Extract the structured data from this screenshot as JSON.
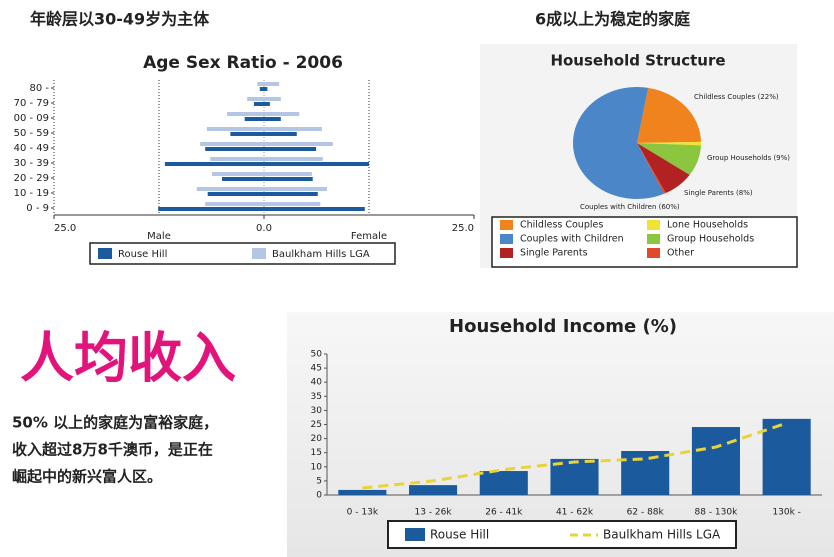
{
  "headings": {
    "age": "年龄层以30-49岁为主体",
    "household": "6成以上为稳定的家庭"
  },
  "income_heading": "人均收入",
  "income_text": [
    "50% 以上的家庭为富裕家庭，",
    "收入超过8万8千澳币，是正在",
    "崛起中的新兴富人区。"
  ],
  "chart_data": [
    {
      "type": "pyramid",
      "title": "Age Sex Ratio - 2006",
      "categories": [
        "0 - 9",
        "10 - 19",
        "20 - 29",
        "30 - 39",
        "40 - 49",
        "50 - 59",
        "00 - 09",
        "70 - 79",
        "80 -"
      ],
      "xlim": [
        -25,
        25
      ],
      "xticks": [
        {
          "value": -25,
          "label": "25.0"
        },
        {
          "value": 0,
          "label": "0.0"
        },
        {
          "value": 25,
          "label": "25.0"
        }
      ],
      "left_label": "Male",
      "right_label": "Female",
      "series": [
        {
          "name": "Rouse Hill",
          "color": "#1b5a9c",
          "left": [
            12.6,
            6.7,
            5.0,
            11.8,
            7.0,
            4.0,
            2.3,
            1.2,
            0.5
          ],
          "right": [
            12.0,
            6.4,
            5.8,
            12.5,
            6.2,
            3.9,
            2.0,
            0.7,
            0.4
          ]
        },
        {
          "name": "Baulkham Hills LGA",
          "color": "#b3c6e3",
          "left": [
            7.0,
            8.0,
            6.2,
            6.4,
            7.6,
            6.8,
            4.4,
            2.0,
            0.8
          ],
          "right": [
            6.7,
            7.5,
            5.7,
            7.0,
            8.2,
            6.9,
            4.2,
            2.0,
            1.8
          ]
        }
      ]
    },
    {
      "type": "pie",
      "title": "Household Structure",
      "categories": [
        "Childless Couples",
        "Lone Households",
        "Group Households",
        "Single Parents",
        "Other",
        "Couples with Children"
      ],
      "values": [
        22,
        1,
        9,
        8,
        0.5,
        60
      ],
      "colors": [
        "#f0831e",
        "#f2e234",
        "#8cc63f",
        "#b22222",
        "#e04a2a",
        "#4a86c8"
      ],
      "value_labels": [
        "Childless Couples (22%)",
        null,
        "Group Households (9%)",
        "Single Parents (8%)",
        null,
        "Couples with Children (60%)"
      ]
    },
    {
      "type": "bar",
      "title": "Household Income (%)",
      "categories": [
        "0 - 13k",
        "13 - 26k",
        "26 - 41k",
        "41 - 62k",
        "62 - 88k",
        "88 - 130k",
        "130k -"
      ],
      "ylim": [
        0,
        50
      ],
      "yticks": [
        0,
        5,
        10,
        15,
        20,
        25,
        30,
        35,
        40,
        45,
        50
      ],
      "series": [
        {
          "name": "Rouse Hill",
          "color": "#1b5a9c",
          "type": "bar",
          "values": [
            1.8,
            3.5,
            8.5,
            12.8,
            15.6,
            24.1,
            27.0
          ]
        },
        {
          "name": "Baulkham Hills LGA",
          "color": "#e8d33a",
          "type": "line",
          "values": [
            2.5,
            5.0,
            9.0,
            11.7,
            12.8,
            17.0,
            25.5
          ]
        }
      ]
    }
  ]
}
